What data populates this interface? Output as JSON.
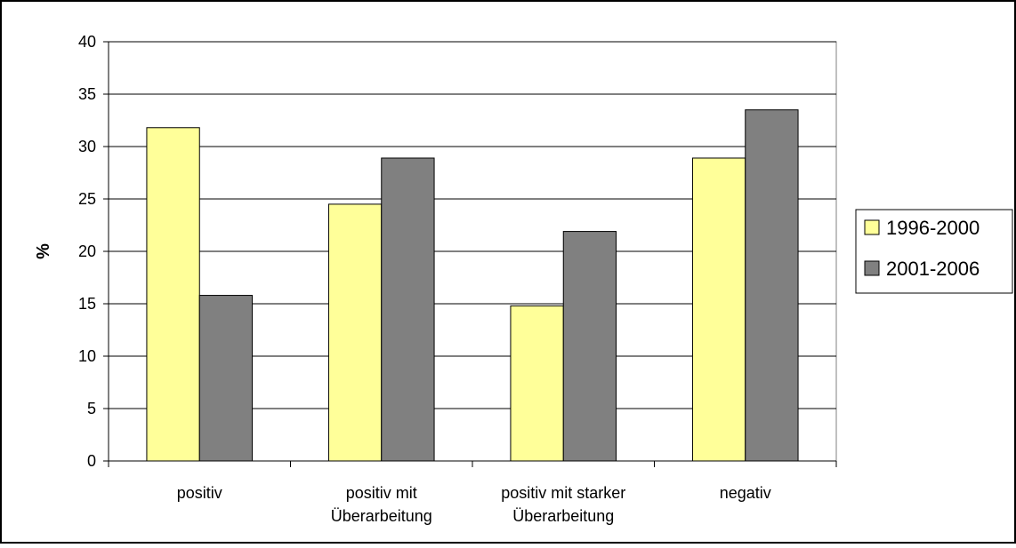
{
  "chart_data": {
    "type": "bar",
    "title": "",
    "xlabel": "",
    "ylabel": "%",
    "ylim": [
      0,
      40
    ],
    "yticks": [
      0,
      5,
      10,
      15,
      20,
      25,
      30,
      35,
      40
    ],
    "grid": true,
    "legend_position": "right",
    "categories": [
      [
        "positiv"
      ],
      [
        "positiv mit",
        "Überarbeitung"
      ],
      [
        "positiv mit starker",
        "Überarbeitung"
      ],
      [
        "negativ"
      ]
    ],
    "series": [
      {
        "name": "1996-2000",
        "color": "#ffff99",
        "values": [
          31.8,
          24.5,
          14.8,
          28.9
        ]
      },
      {
        "name": "2001-2006",
        "color": "#808080",
        "values": [
          15.8,
          28.9,
          21.9,
          33.5
        ]
      }
    ]
  }
}
